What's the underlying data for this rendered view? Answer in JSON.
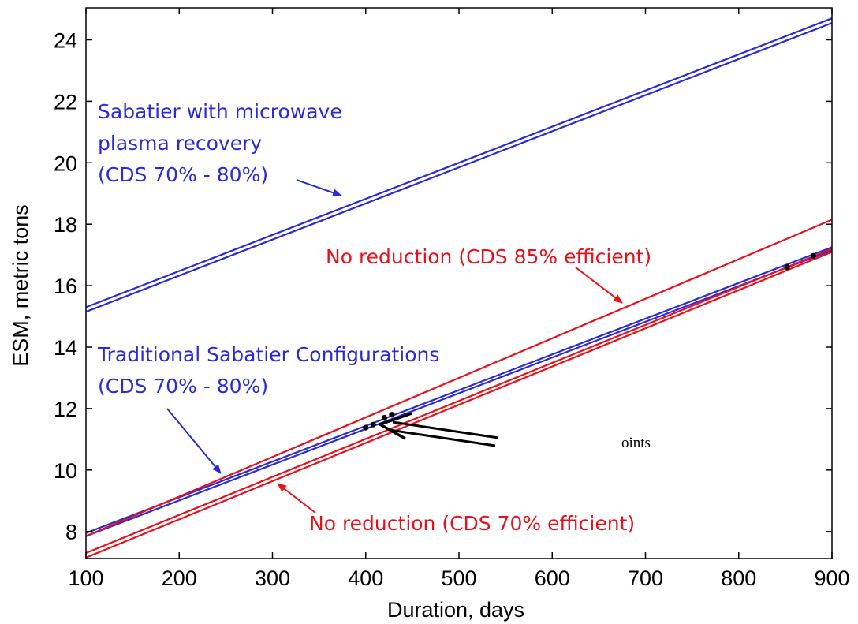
{
  "chart_data": {
    "type": "line",
    "title": "",
    "xlabel": "Duration, days",
    "ylabel": "ESM, metric tons",
    "xlim": [
      100,
      900
    ],
    "ylim": [
      7,
      25
    ],
    "xticks": [
      100,
      200,
      300,
      400,
      500,
      600,
      700,
      800,
      900
    ],
    "yticks": [
      8,
      10,
      12,
      14,
      16,
      18,
      20,
      22,
      24
    ],
    "grid": false,
    "legend": "none",
    "series": [
      {
        "color": "#2a2ad8",
        "x": [
          100,
          900
        ],
        "y": [
          15.3,
          24.7
        ]
      },
      {
        "color": "#2a2ad8",
        "x": [
          100,
          900
        ],
        "y": [
          15.15,
          24.55
        ]
      },
      {
        "color": "#2a2ad8",
        "x": [
          100,
          900
        ],
        "y": [
          7.95,
          17.25
        ]
      },
      {
        "color": "#2a2ad8",
        "x": [
          100,
          900
        ],
        "y": [
          7.85,
          17.15
        ]
      },
      {
        "color": "#e8101a",
        "x": [
          100,
          900
        ],
        "y": [
          7.85,
          18.15
        ]
      },
      {
        "color": "#e8101a",
        "x": [
          100,
          900
        ],
        "y": [
          7.3,
          17.2
        ]
      },
      {
        "color": "#e8101a",
        "x": [
          100,
          900
        ],
        "y": [
          7.15,
          17.1
        ]
      }
    ],
    "points": [
      {
        "x": 400,
        "y": 11.38
      },
      {
        "x": 408,
        "y": 11.48
      },
      {
        "x": 420,
        "y": 11.7
      },
      {
        "x": 428,
        "y": 11.8
      },
      {
        "x": 852,
        "y": 16.6
      },
      {
        "x": 880,
        "y": 16.97
      }
    ],
    "annotations": [
      {
        "lines": [
          "Sabatier with microwave",
          "plasma recovery",
          "(CDS 70% - 80%)"
        ],
        "color": "#2a2ad8"
      },
      {
        "lines": [
          "No reduction (CDS 85% efficient)"
        ],
        "color": "#e8101a"
      },
      {
        "lines": [
          "Traditional Sabatier Configurations",
          "(CDS 70% - 80%)"
        ],
        "color": "#2a2ad8"
      },
      {
        "lines": [
          "No reduction (CDS 70% efficient)"
        ],
        "color": "#e8101a"
      },
      {
        "lines": [
          "oints"
        ],
        "color": "#000000"
      }
    ]
  }
}
